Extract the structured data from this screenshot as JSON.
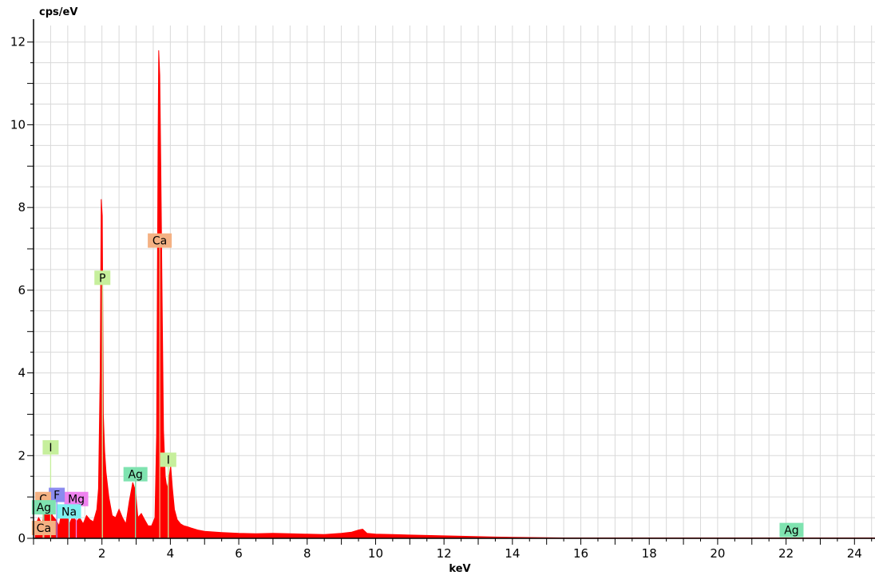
{
  "chart_data": {
    "type": "area",
    "title": "",
    "xlabel": "keV",
    "ylabel": "cps/eV",
    "xlim": [
      0,
      24.6
    ],
    "ylim": [
      0,
      12.4
    ],
    "xticks": [
      2,
      4,
      6,
      8,
      10,
      12,
      14,
      16,
      18,
      20,
      22,
      24
    ],
    "yticks": [
      0,
      2,
      4,
      6,
      8,
      10,
      12
    ],
    "grid": true,
    "series": [
      {
        "color": "#ff0000",
        "x": [
          0.05,
          0.15,
          0.25,
          0.35,
          0.45,
          0.55,
          0.65,
          0.75,
          0.85,
          0.95,
          1.05,
          1.15,
          1.25,
          1.35,
          1.45,
          1.55,
          1.65,
          1.75,
          1.85,
          1.9,
          1.95,
          1.98,
          2.01,
          2.04,
          2.08,
          2.12,
          2.2,
          2.3,
          2.4,
          2.5,
          2.6,
          2.7,
          2.8,
          2.9,
          2.98,
          3.05,
          3.15,
          3.25,
          3.35,
          3.45,
          3.55,
          3.6,
          3.64,
          3.66,
          3.69,
          3.72,
          3.76,
          3.8,
          3.85,
          3.9,
          3.95,
          4.01,
          4.06,
          4.12,
          4.2,
          4.3,
          4.4,
          4.5,
          4.6,
          4.8,
          5.0,
          5.5,
          6.0,
          6.5,
          7.0,
          7.5,
          8.0,
          8.5,
          9.0,
          9.3,
          9.5,
          9.62,
          9.75,
          10.0,
          10.5,
          11.0,
          11.5,
          12.0,
          12.5,
          13.0,
          13.5,
          14.0,
          14.5,
          15.0,
          15.5,
          16.0,
          17.0,
          18.0,
          19.0,
          20.0,
          21.0,
          22.0,
          23.0,
          24.0,
          24.6
        ],
        "y": [
          0.3,
          0.5,
          0.35,
          0.8,
          0.95,
          0.55,
          0.45,
          0.3,
          0.75,
          0.65,
          0.35,
          0.55,
          0.4,
          0.5,
          0.35,
          0.55,
          0.45,
          0.4,
          0.7,
          1.2,
          4.0,
          8.2,
          7.8,
          3.0,
          2.1,
          1.6,
          1.0,
          0.55,
          0.5,
          0.7,
          0.5,
          0.35,
          0.9,
          1.35,
          1.15,
          0.5,
          0.6,
          0.45,
          0.3,
          0.3,
          0.5,
          2.5,
          9.5,
          11.8,
          11.2,
          9.0,
          5.7,
          2.6,
          1.5,
          1.2,
          1.4,
          1.75,
          1.2,
          0.7,
          0.45,
          0.35,
          0.3,
          0.28,
          0.25,
          0.2,
          0.17,
          0.14,
          0.12,
          0.11,
          0.12,
          0.11,
          0.1,
          0.09,
          0.12,
          0.15,
          0.2,
          0.22,
          0.12,
          0.1,
          0.09,
          0.08,
          0.07,
          0.06,
          0.05,
          0.04,
          0.03,
          0.025,
          0.02,
          0.015,
          0.01,
          0.01,
          0.01,
          0.01,
          0.01,
          0.01,
          0.01,
          0.01,
          0.01,
          0.01,
          0.01
        ]
      }
    ],
    "peak_labels": [
      {
        "text": "Ca",
        "x": 3.69,
        "y": 7.2,
        "color": "#f4b183"
      },
      {
        "text": "P",
        "x": 2.013,
        "y": 6.3,
        "color": "#c6ef9c"
      },
      {
        "text": "I",
        "x": 0.5,
        "y": 2.2,
        "color": "#c6ef9c"
      },
      {
        "text": "I",
        "x": 3.94,
        "y": 1.9,
        "color": "#c6ef9c"
      },
      {
        "text": "Ag",
        "x": 2.98,
        "y": 1.55,
        "color": "#7fe3b0"
      },
      {
        "text": "Mg",
        "x": 1.25,
        "y": 0.95,
        "color": "#ee82ee"
      },
      {
        "text": "F",
        "x": 0.68,
        "y": 1.05,
        "color": "#8b8bef"
      },
      {
        "text": "C",
        "x": 0.28,
        "y": 0.95,
        "color": "#f4b183"
      },
      {
        "text": "Ag",
        "x": 0.3,
        "y": 0.75,
        "color": "#7fe3b0"
      },
      {
        "text": "Na",
        "x": 1.04,
        "y": 0.65,
        "color": "#7ff0f0"
      },
      {
        "text": "Ca",
        "x": 0.3,
        "y": 0.25,
        "color": "#f4b183"
      },
      {
        "text": "Ag",
        "x": 22.16,
        "y": 0.2,
        "color": "#7fe3b0"
      }
    ]
  }
}
